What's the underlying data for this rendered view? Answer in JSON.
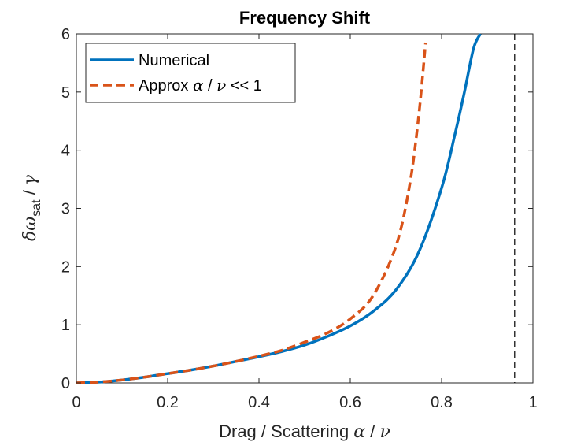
{
  "chart_data": {
    "type": "line",
    "title": "Frequency Shift",
    "xlabel": {
      "prefix": "Drag / Scattering ",
      "alpha": "α",
      "sep": " / ",
      "nu": "ν"
    },
    "ylabel": {
      "delta": "δω",
      "sub": "sat",
      "sep": " / ",
      "gamma": "γ"
    },
    "xlim": [
      0,
      1
    ],
    "ylim": [
      0,
      6
    ],
    "xticks": [
      0,
      0.2,
      0.4,
      0.6,
      0.8,
      1
    ],
    "xtick_labels": [
      "0",
      "0.2",
      "0.4",
      "0.6",
      "0.8",
      "1"
    ],
    "yticks": [
      0,
      1,
      2,
      3,
      4,
      5,
      6
    ],
    "ytick_labels": [
      "0",
      "1",
      "2",
      "3",
      "4",
      "5",
      "6"
    ],
    "grid": false,
    "legend_position": "top-left",
    "vline": {
      "x": 0.96,
      "style": "dashed",
      "color": "#000000"
    },
    "series": [
      {
        "name": "Numerical",
        "legend_text": "Numerical",
        "color": "#0072BD",
        "style": "solid",
        "x": [
          0,
          0.05,
          0.1,
          0.15,
          0.2,
          0.25,
          0.3,
          0.35,
          0.4,
          0.45,
          0.5,
          0.55,
          0.6,
          0.65,
          0.7,
          0.75,
          0.8,
          0.83,
          0.85,
          0.87,
          0.885
        ],
        "y": [
          0,
          0.015,
          0.05,
          0.1,
          0.16,
          0.22,
          0.29,
          0.37,
          0.45,
          0.54,
          0.65,
          0.8,
          0.98,
          1.23,
          1.6,
          2.25,
          3.35,
          4.3,
          5.0,
          5.75,
          6.0
        ]
      },
      {
        "name": "Approx α / ν << 1",
        "legend_text": {
          "prefix": "Approx ",
          "alpha": "α",
          "sep": " / ",
          "nu": "ν",
          "suffix": " << 1"
        },
        "color": "#D95319",
        "style": "dashed",
        "x": [
          0,
          0.05,
          0.1,
          0.15,
          0.2,
          0.25,
          0.3,
          0.35,
          0.4,
          0.45,
          0.5,
          0.55,
          0.6,
          0.65,
          0.7,
          0.73,
          0.75,
          0.765
        ],
        "y": [
          0,
          0.015,
          0.05,
          0.1,
          0.16,
          0.22,
          0.29,
          0.37,
          0.46,
          0.56,
          0.7,
          0.86,
          1.1,
          1.5,
          2.35,
          3.4,
          4.6,
          5.85
        ]
      }
    ]
  }
}
